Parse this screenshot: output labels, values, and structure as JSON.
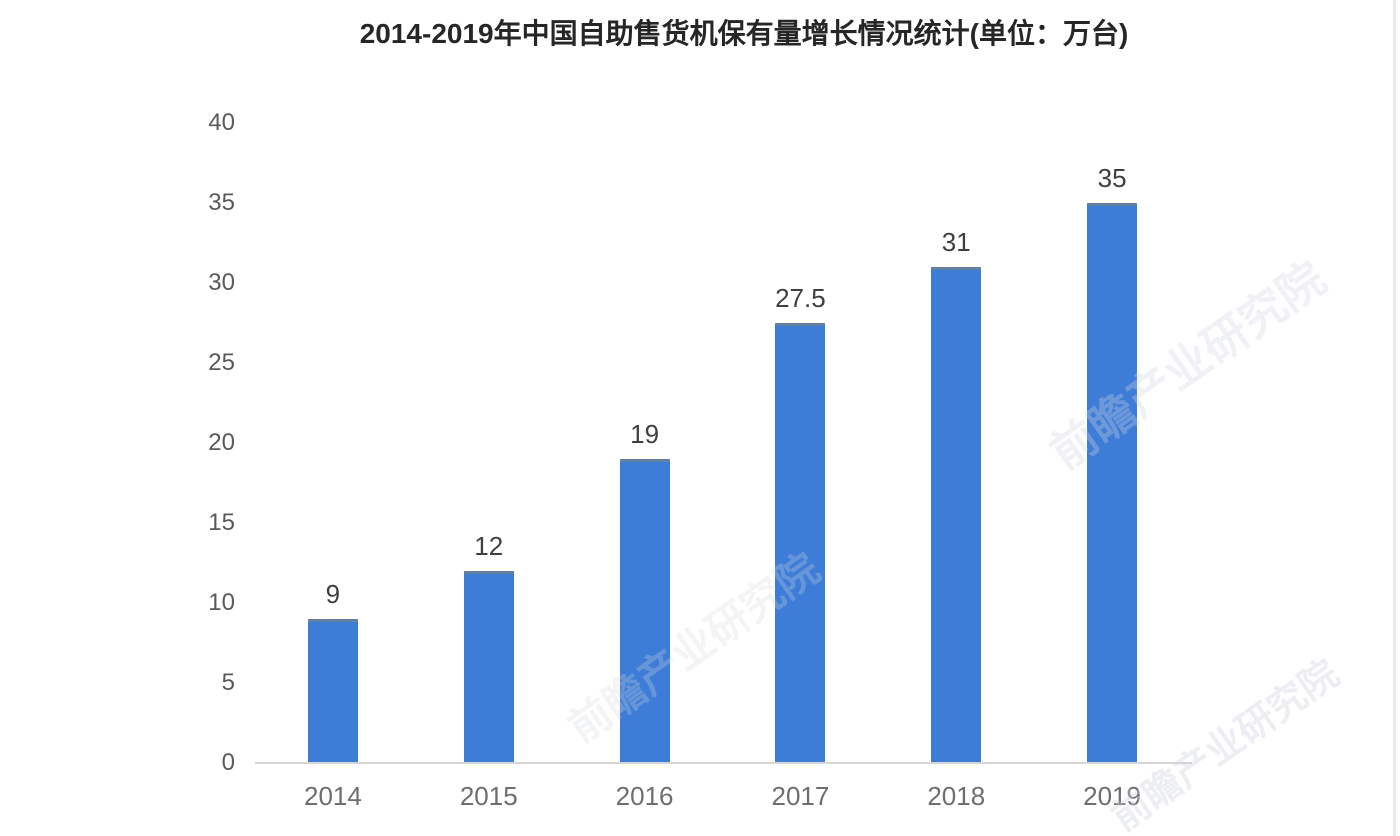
{
  "page": {
    "background": "#ffffff"
  },
  "chart_data": {
    "type": "bar",
    "title": "2014-2019年中国自助售货机保有量增长情况统计(单位：万台)",
    "categories": [
      "2014",
      "2015",
      "2016",
      "2017",
      "2018",
      "2019"
    ],
    "values": [
      9,
      12,
      19,
      27.5,
      31,
      35
    ],
    "value_labels": [
      "9",
      "12",
      "19",
      "27.5",
      "31",
      "35"
    ],
    "xlabel": "",
    "ylabel": "",
    "ylim": [
      0,
      40
    ],
    "yticks": [
      0,
      5,
      10,
      15,
      20,
      25,
      30,
      35,
      40
    ],
    "grid": false,
    "legend": "none",
    "bar_color": "#3e7dd7",
    "bar_top_edge_color": "#64809f",
    "axis_line_color": "#d6d6d6",
    "ytick_label_color": "#595959",
    "xtick_label_color": "#6e6e6e",
    "value_label_color": "#3f3f3f",
    "title_color": "#262626"
  },
  "watermark": {
    "text": "前瞻产业研究院"
  }
}
